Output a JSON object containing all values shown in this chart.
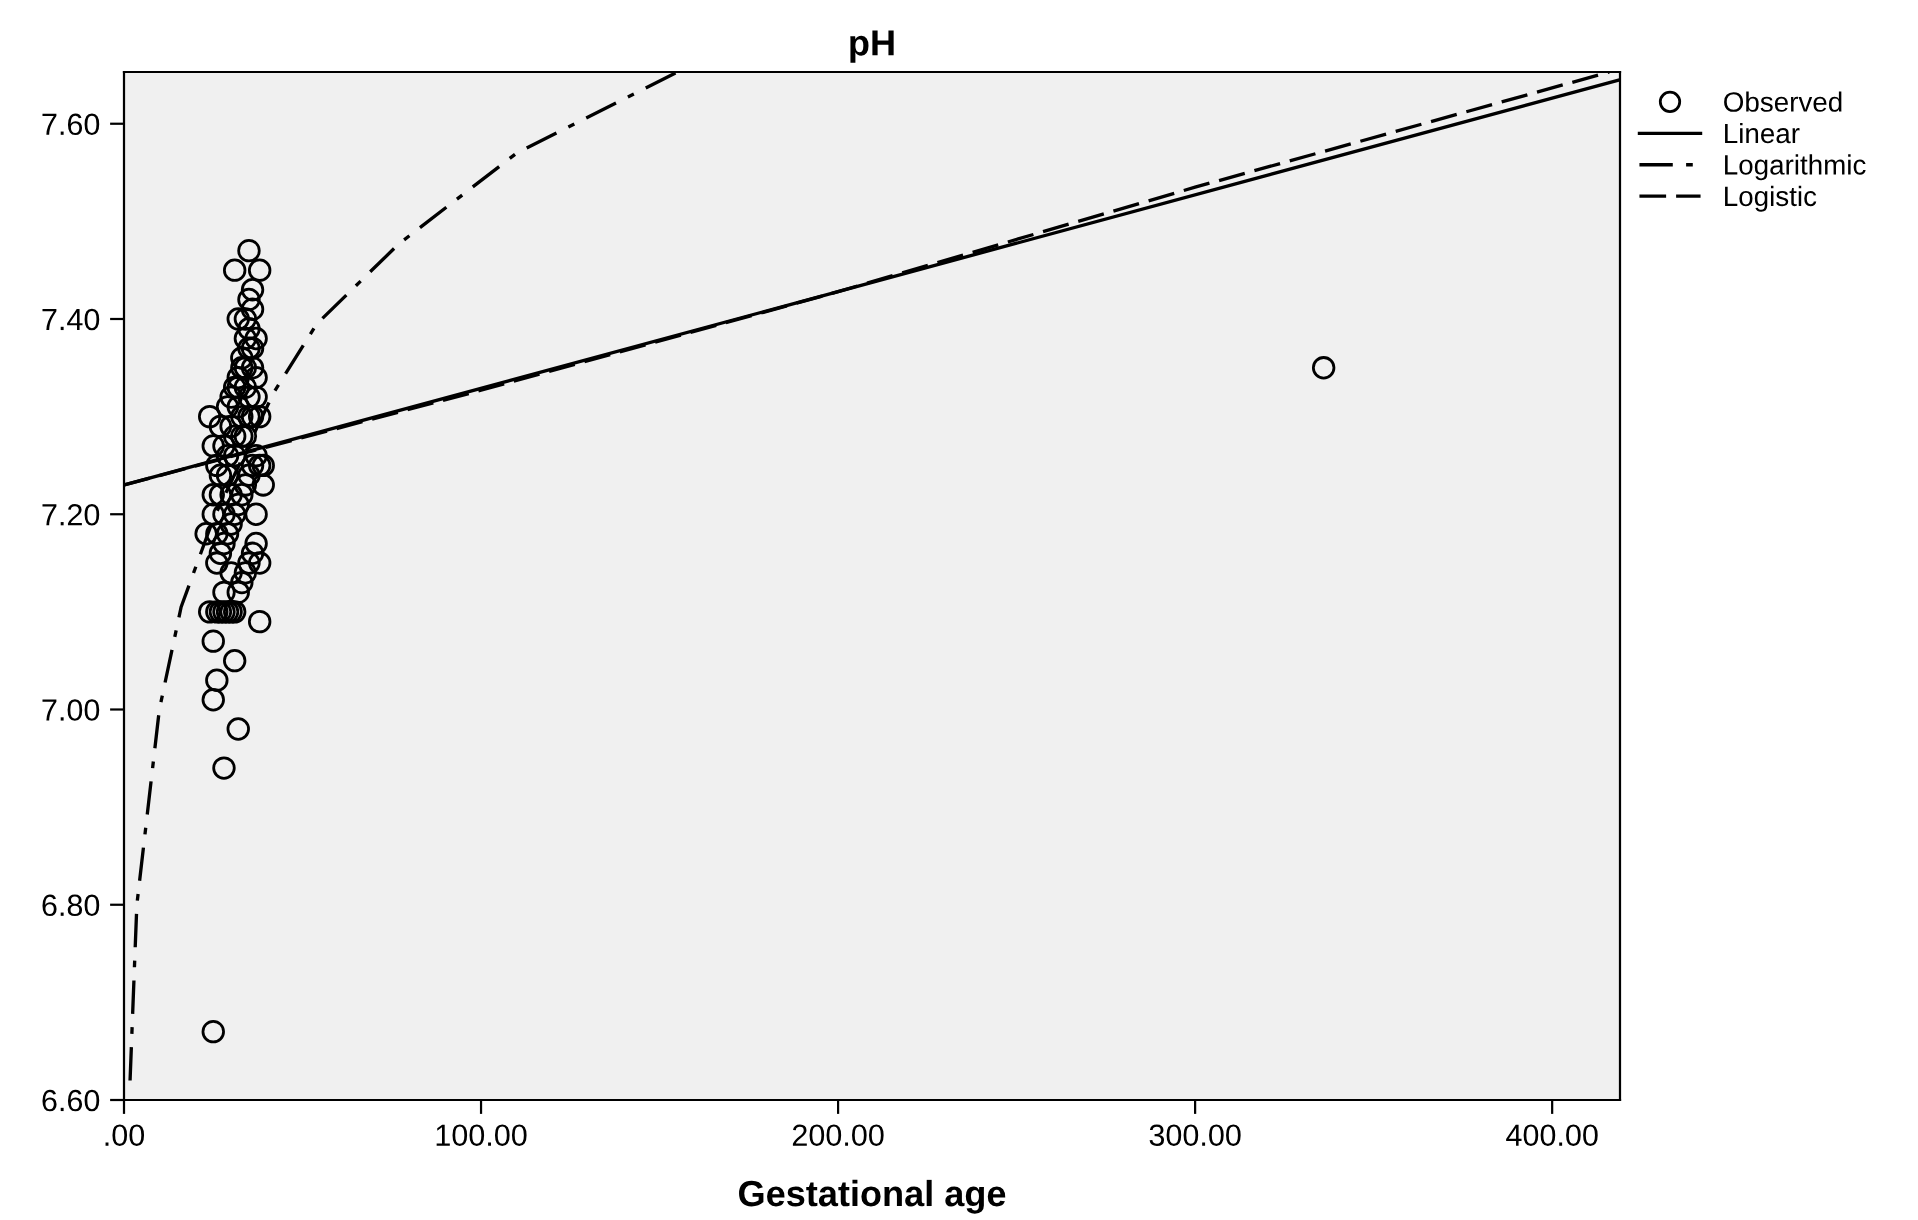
{
  "chart_data": {
    "type": "scatter",
    "title": "pH",
    "xlabel": "Gestational age",
    "xlim": [
      0,
      419
    ],
    "ylim": [
      6.6,
      7.653
    ],
    "xticks": [
      {
        "value": 0,
        "label": ".00"
      },
      {
        "value": 100,
        "label": "100.00"
      },
      {
        "value": 200,
        "label": "200.00"
      },
      {
        "value": 300,
        "label": "300.00"
      },
      {
        "value": 400,
        "label": "400.00"
      }
    ],
    "yticks": [
      {
        "value": 6.6,
        "label": "6.60"
      },
      {
        "value": 6.8,
        "label": "6.80"
      },
      {
        "value": 7.0,
        "label": "7.00"
      },
      {
        "value": 7.2,
        "label": "7.20"
      },
      {
        "value": 7.4,
        "label": "7.40"
      },
      {
        "value": 7.6,
        "label": "7.60"
      }
    ],
    "grid": false,
    "legend": "top right",
    "series": [
      {
        "name": "Observed",
        "marker": "circle",
        "color": "#000000",
        "x": [
          35,
          31,
          38,
          32,
          24,
          23,
          24,
          25,
          26,
          25,
          31,
          32,
          28,
          25,
          38,
          39,
          38,
          336,
          26,
          27,
          28,
          29,
          30,
          31,
          32,
          33,
          34,
          35,
          36,
          37,
          26,
          27,
          28,
          29,
          30,
          31,
          32,
          33,
          34,
          35,
          36,
          37,
          25,
          27,
          29,
          31,
          33,
          35,
          37,
          26,
          28,
          30,
          32,
          34,
          36,
          38,
          25,
          27,
          29,
          31,
          33,
          35,
          37,
          26,
          28,
          30,
          32,
          34,
          36,
          34,
          35,
          36,
          37,
          33,
          34,
          35,
          36,
          30,
          32,
          34,
          36,
          38,
          28,
          30,
          25,
          27,
          29,
          31,
          33,
          35,
          37,
          39
        ],
        "values": [
          7.47,
          7.45,
          7.45,
          7.4,
          7.3,
          7.18,
          7.1,
          7.07,
          7.03,
          7.01,
          7.05,
          6.98,
          6.94,
          6.67,
          7.09,
          7.23,
          7.15,
          7.35,
          7.1,
          7.1,
          7.1,
          7.1,
          7.1,
          7.1,
          7.12,
          7.13,
          7.14,
          7.15,
          7.16,
          7.17,
          7.15,
          7.16,
          7.17,
          7.18,
          7.19,
          7.2,
          7.21,
          7.22,
          7.23,
          7.24,
          7.25,
          7.26,
          7.2,
          7.22,
          7.24,
          7.26,
          7.28,
          7.3,
          7.32,
          7.25,
          7.27,
          7.29,
          7.31,
          7.33,
          7.35,
          7.3,
          7.22,
          7.24,
          7.26,
          7.28,
          7.3,
          7.32,
          7.34,
          7.18,
          7.2,
          7.22,
          7.33,
          7.35,
          7.37,
          7.4,
          7.42,
          7.43,
          7.38,
          7.36,
          7.38,
          7.39,
          7.41,
          7.32,
          7.34,
          7.28,
          7.3,
          7.25,
          7.12,
          7.14,
          7.27,
          7.29,
          7.31,
          7.33,
          7.35,
          7.37,
          7.2,
          7.25
        ]
      },
      {
        "name": "Linear",
        "type": "line",
        "line_style": "solid",
        "color": "#000000",
        "x": [
          0,
          419
        ],
        "values": [
          7.23,
          7.645
        ]
      },
      {
        "name": "Logarithmic",
        "type": "line",
        "line_style": "dashdot",
        "color": "#000000",
        "x": [
          1.7,
          3.6,
          9.9,
          16,
          25,
          42,
          54,
          77,
          110,
          155
        ],
        "values": [
          6.62,
          6.8,
          7.0,
          7.105,
          7.195,
          7.325,
          7.395,
          7.477,
          7.57,
          7.653
        ]
      },
      {
        "name": "Logistic",
        "type": "line",
        "line_style": "dashed",
        "color": "#000000",
        "x": [
          0,
          100,
          200,
          300,
          416
        ],
        "values": [
          7.23,
          7.327,
          7.428,
          7.535,
          7.653
        ]
      }
    ]
  }
}
